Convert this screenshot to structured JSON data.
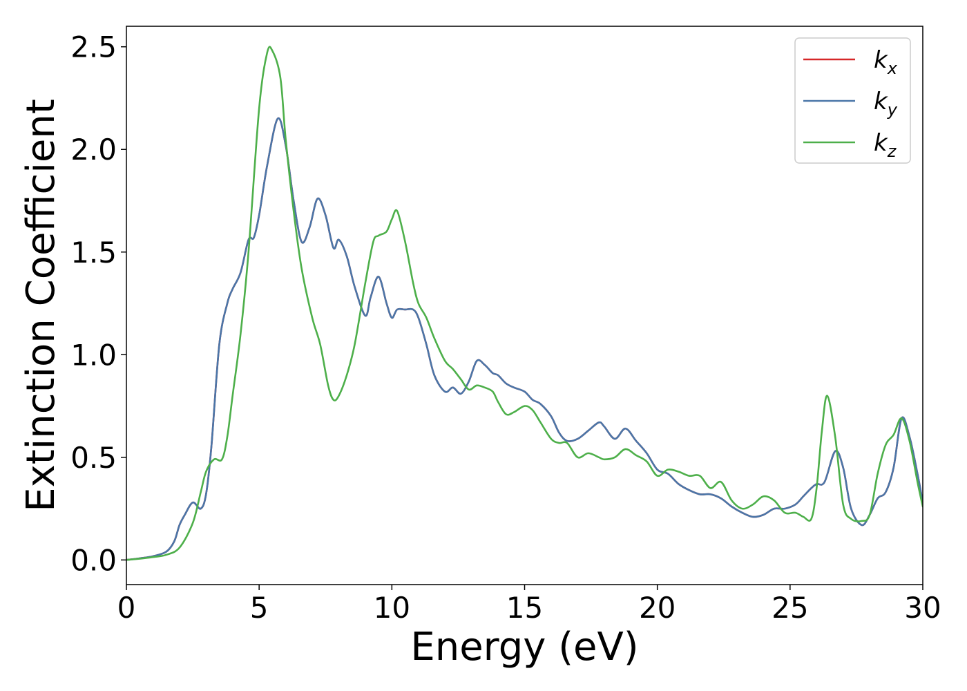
{
  "chart_data": {
    "type": "line",
    "xlabel": "Energy (eV)",
    "ylabel": "Extinction Coefficient",
    "xlim": [
      0,
      30
    ],
    "ylim": [
      -0.12,
      2.6
    ],
    "xticks": [
      "0",
      "5",
      "10",
      "15",
      "20",
      "25",
      "30"
    ],
    "yticks": [
      "0.0",
      "0.5",
      "1.0",
      "1.5",
      "2.0",
      "2.5"
    ],
    "grid": false,
    "legend_position": "top-right",
    "series": [
      {
        "name": "k_x",
        "legend_base": "k",
        "legend_sub": "x",
        "color": "#d62728",
        "x": [
          0,
          0.5,
          1.0,
          1.5,
          1.8,
          2.0,
          2.2,
          2.5,
          2.8,
          3.0,
          3.2,
          3.5,
          3.8,
          4.0,
          4.3,
          4.6,
          4.8,
          5.0,
          5.3,
          5.7,
          6.0,
          6.3,
          6.6,
          6.9,
          7.2,
          7.5,
          7.8,
          8.0,
          8.3,
          8.6,
          9.0,
          9.2,
          9.5,
          9.8,
          10.0,
          10.2,
          10.5,
          10.8,
          11.0,
          11.3,
          11.6,
          12.0,
          12.3,
          12.6,
          12.9,
          13.2,
          13.5,
          13.8,
          14.0,
          14.3,
          14.6,
          15.0,
          15.3,
          15.6,
          16.0,
          16.3,
          16.6,
          17.0,
          17.4,
          17.8,
          18.0,
          18.4,
          18.8,
          19.2,
          19.6,
          20.0,
          20.4,
          20.8,
          21.2,
          21.6,
          22.0,
          22.4,
          22.8,
          23.2,
          23.6,
          24.0,
          24.4,
          24.8,
          25.2,
          25.5,
          25.8,
          26.0,
          26.3,
          26.7,
          27.0,
          27.3,
          27.7,
          28.0,
          28.3,
          28.6,
          28.9,
          29.2,
          29.5,
          29.8,
          30.0
        ],
        "y": [
          0.0,
          0.008,
          0.018,
          0.04,
          0.09,
          0.17,
          0.22,
          0.28,
          0.25,
          0.32,
          0.55,
          1.05,
          1.25,
          1.32,
          1.4,
          1.56,
          1.57,
          1.68,
          1.92,
          2.15,
          2.02,
          1.75,
          1.55,
          1.62,
          1.76,
          1.68,
          1.52,
          1.56,
          1.48,
          1.33,
          1.19,
          1.28,
          1.38,
          1.25,
          1.18,
          1.22,
          1.22,
          1.22,
          1.18,
          1.05,
          0.9,
          0.82,
          0.84,
          0.81,
          0.87,
          0.97,
          0.95,
          0.91,
          0.9,
          0.86,
          0.84,
          0.82,
          0.78,
          0.76,
          0.7,
          0.62,
          0.58,
          0.59,
          0.63,
          0.67,
          0.65,
          0.59,
          0.64,
          0.58,
          0.52,
          0.44,
          0.42,
          0.37,
          0.34,
          0.32,
          0.32,
          0.3,
          0.26,
          0.23,
          0.21,
          0.22,
          0.25,
          0.25,
          0.27,
          0.31,
          0.35,
          0.37,
          0.38,
          0.53,
          0.45,
          0.25,
          0.17,
          0.22,
          0.3,
          0.33,
          0.45,
          0.69,
          0.6,
          0.42,
          0.28
        ]
      },
      {
        "name": "k_y",
        "legend_base": "k",
        "legend_sub": "y",
        "color": "#4a76a8",
        "x": [
          0,
          0.5,
          1.0,
          1.5,
          1.8,
          2.0,
          2.2,
          2.5,
          2.8,
          3.0,
          3.2,
          3.5,
          3.8,
          4.0,
          4.3,
          4.6,
          4.8,
          5.0,
          5.3,
          5.7,
          6.0,
          6.3,
          6.6,
          6.9,
          7.2,
          7.5,
          7.8,
          8.0,
          8.3,
          8.6,
          9.0,
          9.2,
          9.5,
          9.8,
          10.0,
          10.2,
          10.5,
          10.8,
          11.0,
          11.3,
          11.6,
          12.0,
          12.3,
          12.6,
          12.9,
          13.2,
          13.5,
          13.8,
          14.0,
          14.3,
          14.6,
          15.0,
          15.3,
          15.6,
          16.0,
          16.3,
          16.6,
          17.0,
          17.4,
          17.8,
          18.0,
          18.4,
          18.8,
          19.2,
          19.6,
          20.0,
          20.4,
          20.8,
          21.2,
          21.6,
          22.0,
          22.4,
          22.8,
          23.2,
          23.6,
          24.0,
          24.4,
          24.8,
          25.2,
          25.5,
          25.8,
          26.0,
          26.3,
          26.7,
          27.0,
          27.3,
          27.7,
          28.0,
          28.3,
          28.6,
          28.9,
          29.2,
          29.5,
          29.8,
          30.0
        ],
        "y": [
          0.0,
          0.008,
          0.018,
          0.04,
          0.09,
          0.17,
          0.22,
          0.28,
          0.25,
          0.32,
          0.55,
          1.05,
          1.25,
          1.32,
          1.4,
          1.56,
          1.57,
          1.68,
          1.92,
          2.15,
          2.02,
          1.75,
          1.55,
          1.62,
          1.76,
          1.68,
          1.52,
          1.56,
          1.48,
          1.33,
          1.19,
          1.28,
          1.38,
          1.25,
          1.18,
          1.22,
          1.22,
          1.22,
          1.18,
          1.05,
          0.9,
          0.82,
          0.84,
          0.81,
          0.87,
          0.97,
          0.95,
          0.91,
          0.9,
          0.86,
          0.84,
          0.82,
          0.78,
          0.76,
          0.7,
          0.62,
          0.58,
          0.59,
          0.63,
          0.67,
          0.65,
          0.59,
          0.64,
          0.58,
          0.52,
          0.44,
          0.42,
          0.37,
          0.34,
          0.32,
          0.32,
          0.3,
          0.26,
          0.23,
          0.21,
          0.22,
          0.25,
          0.25,
          0.27,
          0.31,
          0.35,
          0.37,
          0.38,
          0.53,
          0.45,
          0.25,
          0.17,
          0.22,
          0.3,
          0.33,
          0.45,
          0.69,
          0.6,
          0.42,
          0.28
        ]
      },
      {
        "name": "k_z",
        "legend_base": "k",
        "legend_sub": "z",
        "color": "#4daf4a",
        "x": [
          0,
          0.5,
          1.0,
          1.5,
          2.0,
          2.5,
          2.8,
          3.0,
          3.3,
          3.6,
          3.8,
          4.0,
          4.3,
          4.6,
          5.0,
          5.3,
          5.5,
          5.8,
          6.0,
          6.3,
          6.6,
          7.0,
          7.3,
          7.6,
          7.8,
          8.0,
          8.3,
          8.6,
          9.0,
          9.3,
          9.5,
          9.8,
          10.0,
          10.2,
          10.5,
          10.8,
          11.0,
          11.3,
          11.6,
          12.0,
          12.3,
          12.6,
          12.9,
          13.2,
          13.5,
          13.8,
          14.0,
          14.3,
          14.6,
          15.0,
          15.3,
          15.6,
          16.0,
          16.3,
          16.6,
          17.0,
          17.4,
          17.8,
          18.0,
          18.4,
          18.8,
          19.2,
          19.6,
          20.0,
          20.4,
          20.8,
          21.2,
          21.6,
          22.0,
          22.4,
          22.8,
          23.2,
          23.6,
          24.0,
          24.4,
          24.8,
          25.2,
          25.5,
          25.8,
          26.0,
          26.2,
          26.4,
          26.7,
          27.0,
          27.3,
          27.7,
          28.0,
          28.3,
          28.6,
          28.9,
          29.2,
          29.5,
          29.8,
          30.0
        ],
        "y": [
          0.0,
          0.006,
          0.014,
          0.025,
          0.06,
          0.18,
          0.33,
          0.43,
          0.49,
          0.49,
          0.6,
          0.8,
          1.1,
          1.5,
          2.2,
          2.47,
          2.48,
          2.35,
          2.05,
          1.7,
          1.42,
          1.18,
          1.05,
          0.85,
          0.78,
          0.8,
          0.9,
          1.05,
          1.35,
          1.55,
          1.58,
          1.6,
          1.66,
          1.7,
          1.55,
          1.35,
          1.25,
          1.18,
          1.08,
          0.97,
          0.93,
          0.88,
          0.83,
          0.85,
          0.84,
          0.82,
          0.77,
          0.71,
          0.72,
          0.75,
          0.73,
          0.67,
          0.59,
          0.57,
          0.57,
          0.5,
          0.52,
          0.5,
          0.49,
          0.5,
          0.54,
          0.51,
          0.48,
          0.41,
          0.44,
          0.43,
          0.41,
          0.41,
          0.35,
          0.38,
          0.29,
          0.25,
          0.27,
          0.31,
          0.29,
          0.23,
          0.23,
          0.21,
          0.2,
          0.35,
          0.63,
          0.8,
          0.6,
          0.27,
          0.2,
          0.19,
          0.22,
          0.42,
          0.56,
          0.61,
          0.69,
          0.58,
          0.38,
          0.26
        ]
      }
    ]
  }
}
